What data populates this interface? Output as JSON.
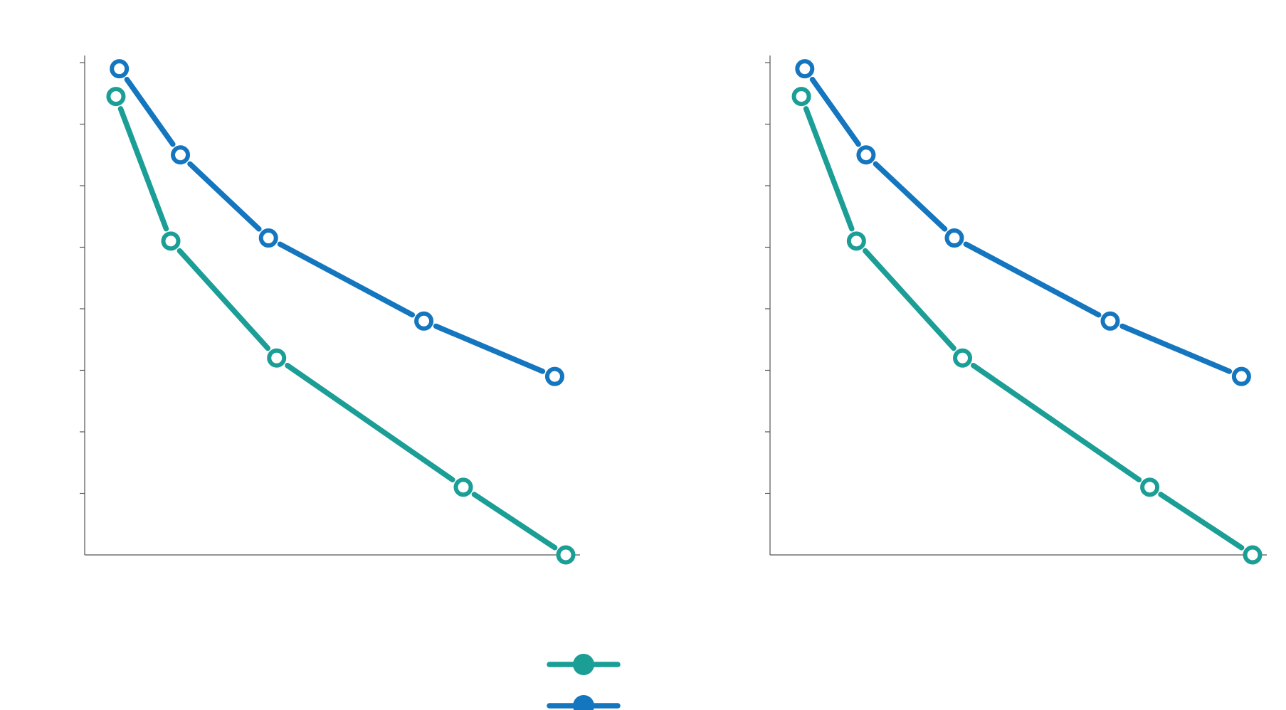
{
  "chart_data": [
    {
      "type": "line",
      "title": "",
      "xlabel": "",
      "ylabel": "",
      "grid": false,
      "legend": "bottom-center",
      "xlim": [
        0,
        1
      ],
      "ylim": [
        0,
        8
      ],
      "yticks": [
        0,
        1,
        2,
        3,
        4,
        5,
        6,
        7,
        8
      ],
      "series": [
        {
          "name": "",
          "color": "#1a9e96",
          "x": [
            0.065,
            0.179,
            0.399,
            0.787,
            1.0
          ],
          "y": [
            7.45,
            5.1,
            3.2,
            1.1,
            0.0
          ]
        },
        {
          "name": "",
          "color": "#1476bf",
          "x": [
            0.072,
            0.199,
            0.382,
            0.705,
            0.977
          ],
          "y": [
            7.9,
            6.5,
            5.15,
            3.8,
            2.9
          ]
        }
      ]
    },
    {
      "type": "line",
      "title": "",
      "xlabel": "",
      "ylabel": "",
      "grid": false,
      "legend": "bottom-center",
      "xlim": [
        0,
        1
      ],
      "ylim": [
        0,
        8
      ],
      "yticks": [
        0,
        1,
        2,
        3,
        4,
        5,
        6,
        7,
        8
      ],
      "series": [
        {
          "name": "",
          "color": "#1a9e96",
          "x": [
            0.065,
            0.179,
            0.399,
            0.787,
            1.0
          ],
          "y": [
            7.45,
            5.1,
            3.2,
            1.1,
            0.0
          ]
        },
        {
          "name": "",
          "color": "#1476bf",
          "x": [
            0.072,
            0.199,
            0.382,
            0.705,
            0.977
          ],
          "y": [
            7.9,
            6.5,
            5.15,
            3.8,
            2.9
          ]
        }
      ]
    }
  ],
  "legend_entries": [
    {
      "name": "",
      "color": "#1a9e96"
    },
    {
      "name": "",
      "color": "#1476bf"
    }
  ]
}
